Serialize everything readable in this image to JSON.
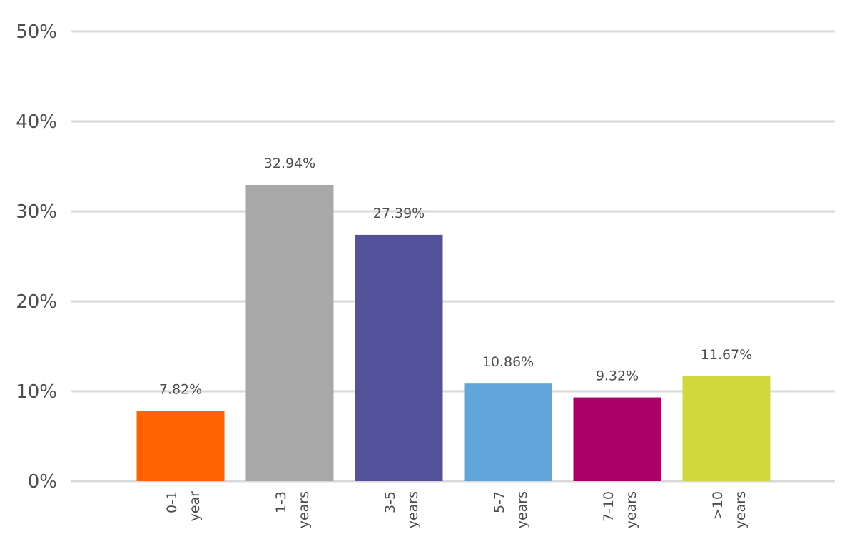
{
  "chart_data": {
    "type": "bar",
    "categories": [
      "0-1 year",
      "1-3 years",
      "3-5 years",
      "5-7 years",
      "7-10 years",
      ">10 years"
    ],
    "category_lines": [
      [
        "0-1",
        "year"
      ],
      [
        "1-3",
        "years"
      ],
      [
        "3-5",
        "years"
      ],
      [
        "5-7",
        "years"
      ],
      [
        "7-10",
        "years"
      ],
      [
        ">10",
        "years"
      ]
    ],
    "values": [
      7.82,
      32.94,
      27.39,
      10.86,
      9.32,
      11.67
    ],
    "data_labels": [
      "7.82%",
      "32.94%",
      "27.39%",
      "10.86%",
      "9.32%",
      "11.67%"
    ],
    "colors": [
      "#ff6200",
      "#a8a8a8",
      "#525199",
      "#60a6da",
      "#ab0066",
      "#d0d93c"
    ],
    "ylim": [
      0,
      50
    ],
    "yticks": [
      0,
      10,
      20,
      30,
      40,
      50
    ],
    "ytick_labels": [
      "0%",
      "10%",
      "20%",
      "30%",
      "40%",
      "50%"
    ],
    "grid": true,
    "title": "",
    "xlabel": "",
    "ylabel": ""
  }
}
